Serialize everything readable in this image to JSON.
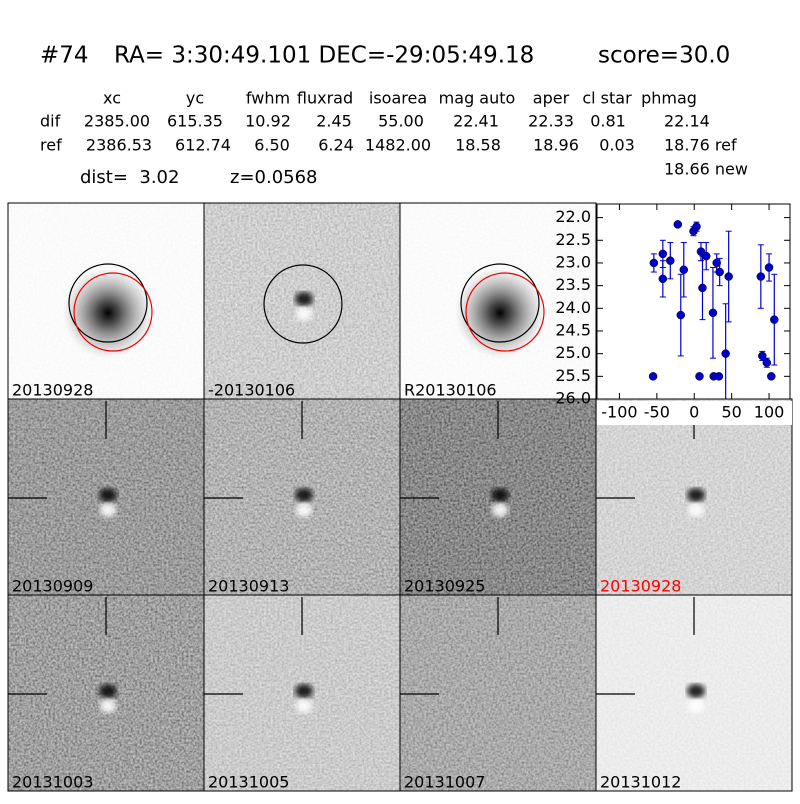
{
  "header": {
    "id": "#74",
    "coords": "RA= 3:30:49.101 DEC=-29:05:49.18",
    "score": "score=30.0"
  },
  "table": {
    "columns": [
      "xc",
      "yc",
      "fwhm",
      "fluxrad",
      "isoarea",
      "mag auto",
      "aper",
      "cl star",
      "phmag"
    ],
    "rows": [
      [
        "dif",
        "2385.00",
        "615.35",
        "10.92",
        "2.45",
        "55.00",
        "22.41",
        "22.33",
        "0.81",
        "22.14"
      ],
      [
        "ref",
        "2386.53",
        "612.74",
        "6.50",
        "6.24",
        "1482.00",
        "18.58",
        "18.96",
        "0.03",
        "18.76 ref"
      ]
    ],
    "note": "18.66 new"
  },
  "summary": {
    "dist": "dist=  3.02",
    "z": "z=0.0568"
  },
  "panels": [
    {
      "label": "20130928"
    },
    {
      "label": "-20130106"
    },
    {
      "label": "R20130106"
    },
    {
      "label": "20130909"
    },
    {
      "label": "20130913"
    },
    {
      "label": "20130925"
    },
    {
      "label": "20130928",
      "color": "#ff0000"
    },
    {
      "label": "20131003"
    },
    {
      "label": "20131005"
    },
    {
      "label": "20131007"
    },
    {
      "label": "20131012"
    }
  ],
  "chart_data": {
    "type": "scatter",
    "xlim": [
      -130,
      128
    ],
    "ylim": [
      26.0,
      21.7
    ],
    "xticks": [
      -100,
      -50,
      0,
      50,
      100
    ],
    "yticks": [
      {
        "value": 22,
        "label": "22.0"
      },
      {
        "value": 22.5,
        "label": "22.5"
      },
      {
        "value": 23,
        "label": "23.0"
      },
      {
        "value": 23.5,
        "label": "23.5"
      },
      {
        "value": 24,
        "label": "24.0"
      },
      {
        "value": 24.5,
        "label": "24.5"
      },
      {
        "value": 25,
        "label": "25.0"
      },
      {
        "value": 25.5,
        "label": "25.5"
      },
      {
        "value": 26,
        "label": "26.0"
      }
    ],
    "series": [
      {
        "color": "#0000cc",
        "x": [
          -54,
          -55,
          -42,
          -42,
          -32,
          -22,
          -18,
          -14,
          -1,
          3,
          7,
          9,
          11,
          16,
          25,
          26,
          30,
          33,
          34,
          42,
          46,
          89,
          91,
          97,
          100,
          103,
          107
        ],
        "values": [
          23.0,
          25.5,
          22.8,
          23.35,
          22.95,
          22.15,
          24.15,
          23.15,
          22.3,
          22.2,
          25.5,
          22.75,
          23.55,
          22.85,
          24.1,
          25.5,
          23.0,
          25.5,
          23.2,
          25.0,
          23.3,
          23.3,
          25.05,
          25.2,
          23.1,
          25.5,
          24.25
        ],
        "errors": [
          0.2,
          0.05,
          0.3,
          0.4,
          0.4,
          0.05,
          0.9,
          0.6,
          0.1,
          0.1,
          0.05,
          0.2,
          0.7,
          0.3,
          1.0,
          0.05,
          0.2,
          0.05,
          0.3,
          1.1,
          1.0,
          0.7,
          0.1,
          0.1,
          0.3,
          0.05,
          1.0
        ]
      }
    ]
  }
}
